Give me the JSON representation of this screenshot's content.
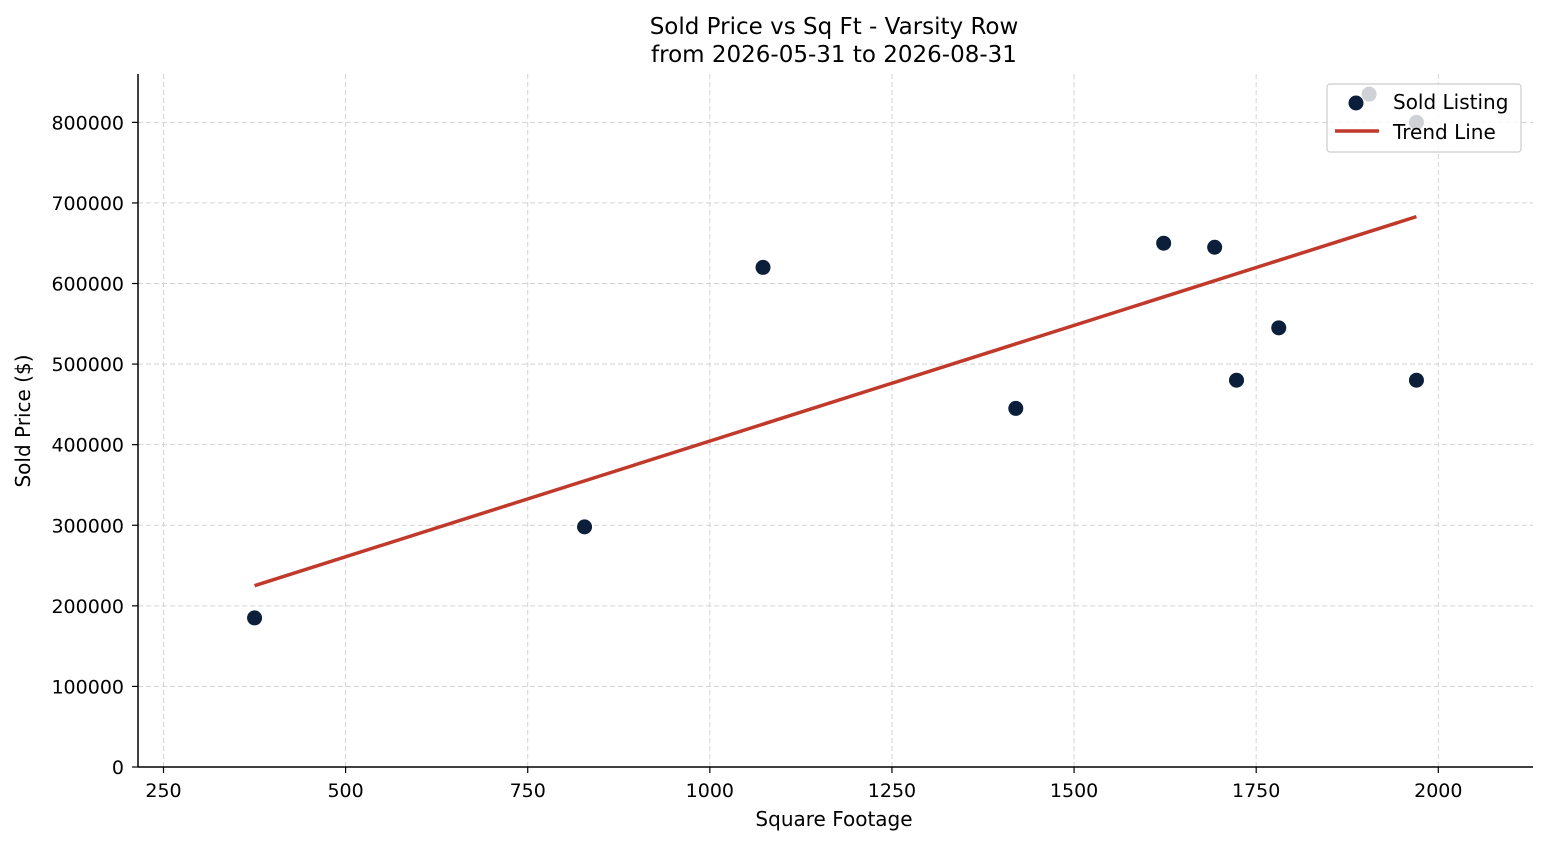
{
  "chart_data": {
    "type": "scatter",
    "title": "Sold Price vs Sq Ft - Varsity Row",
    "subtitle": "from 2026-05-31 to 2026-08-31",
    "xlabel": "Square Footage",
    "ylabel": "Sold Price ($)",
    "xlim": [
      215,
      2130
    ],
    "ylim": [
      0,
      860000
    ],
    "xticks": [
      250,
      500,
      750,
      1000,
      1250,
      1500,
      1750,
      2000
    ],
    "yticks": [
      0,
      100000,
      200000,
      300000,
      400000,
      500000,
      600000,
      700000,
      800000
    ],
    "grid": true,
    "legend_position": "top-right",
    "series": [
      {
        "name": "Sold Listing",
        "color": "#0b1f3a",
        "points": [
          {
            "x": 375,
            "y": 185000
          },
          {
            "x": 828,
            "y": 298000
          },
          {
            "x": 1073,
            "y": 620000
          },
          {
            "x": 1420,
            "y": 445000
          },
          {
            "x": 1623,
            "y": 650000
          },
          {
            "x": 1693,
            "y": 645000
          },
          {
            "x": 1723,
            "y": 480000
          },
          {
            "x": 1781,
            "y": 545000
          },
          {
            "x": 1970,
            "y": 480000
          },
          {
            "x": 1905,
            "y": 835000
          },
          {
            "x": 1970,
            "y": 800000
          }
        ]
      },
      {
        "name": "Trend Line",
        "color": "#c0392b",
        "points": [
          {
            "x": 375,
            "y": 225000
          },
          {
            "x": 1970,
            "y": 683000
          }
        ]
      }
    ]
  }
}
